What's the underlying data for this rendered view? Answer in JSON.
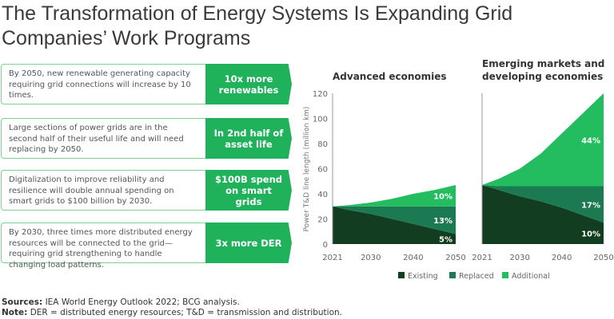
{
  "title": "The Transformation of Energy Systems Is Expanding Grid Companies’ Work Programs",
  "cards": [
    {
      "text": "By 2050, new renewable generating capacity requiring grid connections will increase by 10 times.",
      "tag": "10x more renewables"
    },
    {
      "text": "Large sections of power grids are in the second half of their useful life and will need replacing by 2050.",
      "tag": "In 2nd half of asset life"
    },
    {
      "text": "Digitalization to improve reliability and resilience will double annual spending on smart grids to $100 billion by 2030.",
      "tag": "$100B spend on smart grids"
    },
    {
      "text": "By 2030, three times more distributed energy resources will be connected to the grid—requiring grid strengthening to handle changing load patterns.",
      "tag": "3x more DER"
    }
  ],
  "footer": {
    "sources_label": "Sources:",
    "sources": "IEA World Energy Outlook 2022; BCG analysis.",
    "note_label": "Note:",
    "note": "DER = distributed energy resources; T&D = transmission and distribution."
  },
  "chart_data": {
    "type": "area",
    "stacked": true,
    "ylabel": "Power T&D line length (million km)",
    "ylim": [
      0,
      120
    ],
    "yticks": [
      "0",
      "20",
      "40",
      "60",
      "80",
      "100",
      "120"
    ],
    "xticks": [
      "2021",
      "2030",
      "2040",
      "2050"
    ],
    "legend": {
      "position": "bottom",
      "entries": [
        "Existing",
        "Replaced",
        "Additional"
      ]
    },
    "colors": {
      "Existing": "#123d20",
      "Replaced": "#1b7a52",
      "Additional": "#23bd5f"
    },
    "panels": [
      {
        "title": "Advanced economies",
        "x": [
          2021,
          2025,
          2030,
          2035,
          2040,
          2045,
          2050
        ],
        "series": [
          {
            "name": "Existing",
            "values": [
              30,
              27,
              24,
              20,
              16,
              12,
              8
            ]
          },
          {
            "name": "Replaced",
            "values": [
              0,
              3,
              6,
              10,
              14,
              18,
              22
            ]
          },
          {
            "name": "Additional",
            "values": [
              0,
              1,
              3,
              6,
              10,
              13,
              17
            ]
          }
        ],
        "labels": [
          "5%",
          "13%",
          "10%"
        ]
      },
      {
        "title": "Emerging markets and developing economies",
        "x": [
          2021,
          2025,
          2030,
          2035,
          2040,
          2045,
          2050
        ],
        "series": [
          {
            "name": "Existing",
            "values": [
              47,
              43,
              38,
              34,
              29,
              23,
              17
            ]
          },
          {
            "name": "Replaced",
            "values": [
              0,
              3,
              8,
              12,
              17,
              23,
              29
            ]
          },
          {
            "name": "Additional",
            "values": [
              0,
              6,
              14,
              26,
              42,
              58,
              74
            ]
          }
        ],
        "labels": [
          "10%",
          "17%",
          "44%"
        ]
      }
    ]
  }
}
